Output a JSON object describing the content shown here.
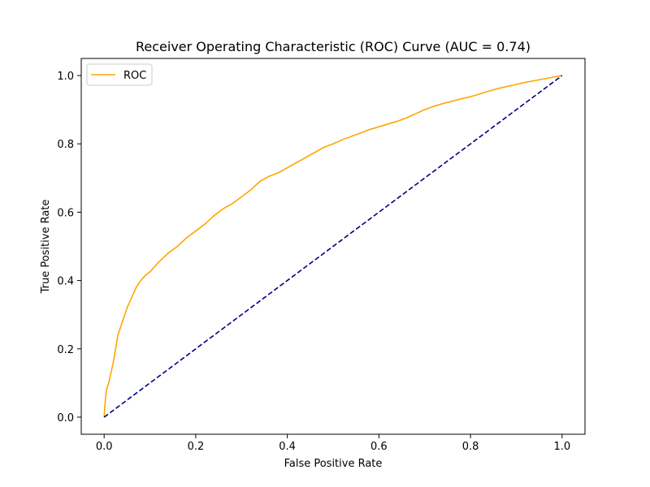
{
  "chart_data": {
    "type": "line",
    "title": "Receiver Operating Characteristic (ROC) Curve (AUC = 0.74)",
    "xlabel": "False Positive Rate",
    "ylabel": "True Positive Rate",
    "xlim": [
      -0.05,
      1.05
    ],
    "ylim": [
      -0.05,
      1.05
    ],
    "grid": false,
    "legend_position": "top-left",
    "xticks": [
      "0.0",
      "0.2",
      "0.4",
      "0.6",
      "0.8",
      "1.0"
    ],
    "yticks": [
      "0.0",
      "0.2",
      "0.4",
      "0.6",
      "0.8",
      "1.0"
    ],
    "series": [
      {
        "name": "ROC",
        "color": "#ffa500",
        "style": "solid",
        "x": [
          0.0,
          0.002,
          0.005,
          0.01,
          0.015,
          0.02,
          0.025,
          0.03,
          0.035,
          0.04,
          0.045,
          0.05,
          0.06,
          0.07,
          0.08,
          0.09,
          0.1,
          0.11,
          0.12,
          0.14,
          0.16,
          0.18,
          0.2,
          0.22,
          0.24,
          0.26,
          0.28,
          0.3,
          0.32,
          0.34,
          0.36,
          0.38,
          0.4,
          0.42,
          0.44,
          0.46,
          0.48,
          0.5,
          0.52,
          0.54,
          0.56,
          0.58,
          0.6,
          0.62,
          0.64,
          0.66,
          0.68,
          0.7,
          0.72,
          0.74,
          0.76,
          0.78,
          0.8,
          0.82,
          0.84,
          0.86,
          0.88,
          0.9,
          0.92,
          0.94,
          0.96,
          0.98,
          1.0
        ],
        "y": [
          0.0,
          0.04,
          0.08,
          0.1,
          0.13,
          0.16,
          0.2,
          0.24,
          0.26,
          0.28,
          0.3,
          0.32,
          0.35,
          0.38,
          0.4,
          0.415,
          0.425,
          0.44,
          0.455,
          0.48,
          0.5,
          0.525,
          0.545,
          0.565,
          0.59,
          0.61,
          0.625,
          0.645,
          0.665,
          0.69,
          0.705,
          0.715,
          0.73,
          0.745,
          0.76,
          0.775,
          0.79,
          0.8,
          0.812,
          0.822,
          0.832,
          0.842,
          0.85,
          0.858,
          0.866,
          0.876,
          0.888,
          0.9,
          0.91,
          0.918,
          0.925,
          0.932,
          0.938,
          0.946,
          0.954,
          0.962,
          0.968,
          0.974,
          0.98,
          0.985,
          0.99,
          0.995,
          1.0
        ]
      },
      {
        "name": "",
        "color": "#000080",
        "style": "dashed",
        "x": [
          0.0,
          1.0
        ],
        "y": [
          0.0,
          1.0
        ]
      }
    ]
  }
}
